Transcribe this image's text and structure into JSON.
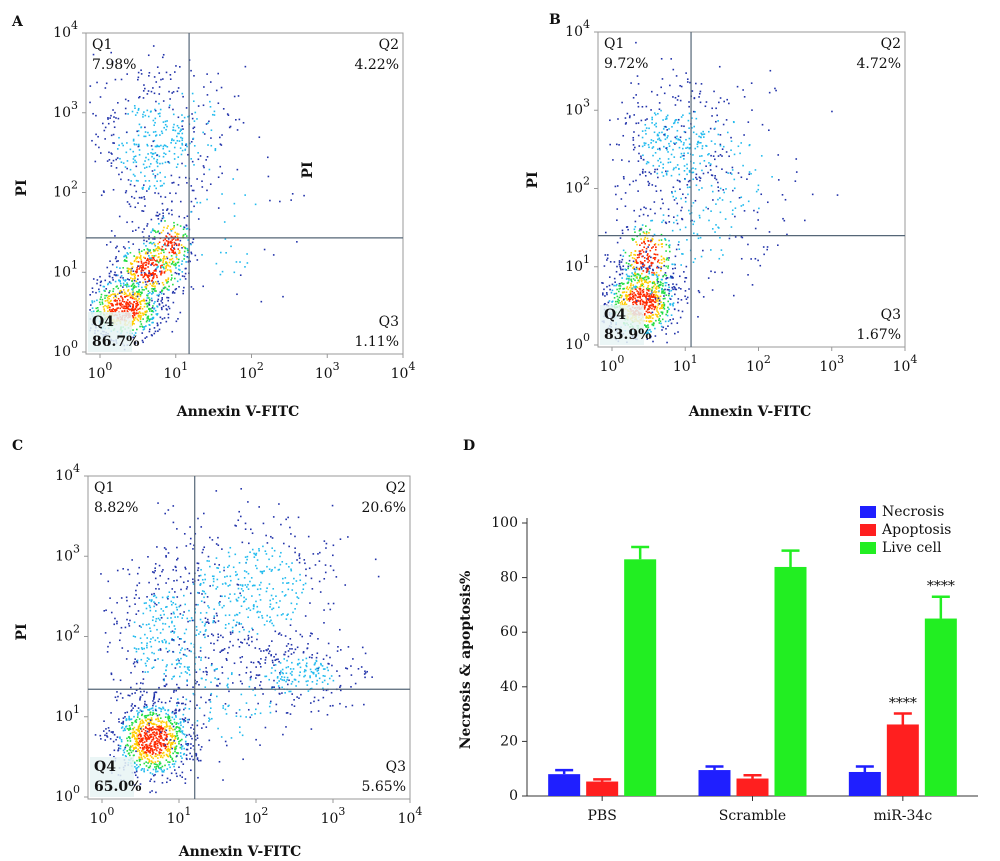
{
  "chart_data": [
    {
      "type": "flow",
      "panel": "A",
      "xlabel": "Annexin V-FITC",
      "ylabel": "PI",
      "annotation": "PI",
      "xscale": "log",
      "yscale": "log",
      "xlim": [
        1,
        10000
      ],
      "ylim": [
        1,
        10000
      ],
      "xticks": [
        {
          "value": 1,
          "label": "10",
          "sup": "0"
        },
        {
          "value": 10,
          "label": "10",
          "sup": "1"
        },
        {
          "value": 100,
          "label": "10",
          "sup": "2"
        },
        {
          "value": 1000,
          "label": "10",
          "sup": "3"
        },
        {
          "value": 10000,
          "label": "10",
          "sup": "4"
        }
      ],
      "yticks": [
        {
          "value": 1,
          "label": "10",
          "sup": "0"
        },
        {
          "value": 10,
          "label": "10",
          "sup": "1"
        },
        {
          "value": 100,
          "label": "10",
          "sup": "2"
        },
        {
          "value": 1000,
          "label": "10",
          "sup": "3"
        },
        {
          "value": 10000,
          "label": "10",
          "sup": "4"
        }
      ],
      "gate": {
        "x": 15,
        "y": 27
      },
      "quadrants": [
        "Q1",
        "Q2",
        "Q3",
        "Q4"
      ],
      "values": [
        7.98,
        4.22,
        1.11,
        86.7
      ],
      "value_labels": [
        "7.98%",
        "4.22%",
        "1.11%",
        "86.7%"
      ]
    },
    {
      "type": "flow",
      "panel": "B",
      "xlabel": "Annexin V-FITC",
      "ylabel": "PI",
      "xscale": "log",
      "yscale": "log",
      "xlim": [
        1,
        10000
      ],
      "ylim": [
        1,
        10000
      ],
      "xticks": [
        {
          "value": 1,
          "label": "10",
          "sup": "0"
        },
        {
          "value": 10,
          "label": "10",
          "sup": "1"
        },
        {
          "value": 100,
          "label": "10",
          "sup": "2"
        },
        {
          "value": 1000,
          "label": "10",
          "sup": "3"
        },
        {
          "value": 10000,
          "label": "10",
          "sup": "4"
        }
      ],
      "yticks": [
        {
          "value": 1,
          "label": "10",
          "sup": "0"
        },
        {
          "value": 10,
          "label": "10",
          "sup": "1"
        },
        {
          "value": 100,
          "label": "10",
          "sup": "2"
        },
        {
          "value": 1000,
          "label": "10",
          "sup": "3"
        },
        {
          "value": 10000,
          "label": "10",
          "sup": "4"
        }
      ],
      "gate": {
        "x": 12,
        "y": 25
      },
      "quadrants": [
        "Q1",
        "Q2",
        "Q3",
        "Q4"
      ],
      "values": [
        9.72,
        4.72,
        1.67,
        83.9
      ],
      "value_labels": [
        "9.72%",
        "4.72%",
        "1.67%",
        "83.9%"
      ]
    },
    {
      "type": "flow",
      "panel": "C",
      "xlabel": "Annexin V-FITC",
      "ylabel": "PI",
      "xscale": "log",
      "yscale": "log",
      "xlim": [
        1,
        10000
      ],
      "ylim": [
        1,
        10000
      ],
      "xticks": [
        {
          "value": 1,
          "label": "10",
          "sup": "0"
        },
        {
          "value": 10,
          "label": "10",
          "sup": "1"
        },
        {
          "value": 100,
          "label": "10",
          "sup": "2"
        },
        {
          "value": 1000,
          "label": "10",
          "sup": "3"
        },
        {
          "value": 10000,
          "label": "10",
          "sup": "4"
        }
      ],
      "yticks": [
        {
          "value": 1,
          "label": "10",
          "sup": "0"
        },
        {
          "value": 10,
          "label": "10",
          "sup": "1"
        },
        {
          "value": 100,
          "label": "10",
          "sup": "2"
        },
        {
          "value": 1000,
          "label": "10",
          "sup": "3"
        },
        {
          "value": 10000,
          "label": "10",
          "sup": "4"
        }
      ],
      "gate": {
        "x": 16,
        "y": 22
      },
      "quadrants": [
        "Q1",
        "Q2",
        "Q3",
        "Q4"
      ],
      "values": [
        8.82,
        20.6,
        5.65,
        65.0
      ],
      "value_labels": [
        "8.82%",
        "20.6%",
        "5.65%",
        "65.0%"
      ]
    },
    {
      "type": "bar",
      "panel": "D",
      "ylabel": "Necrosis & apoptosis%",
      "categories": [
        "PBS",
        "Scramble",
        "miR-34c"
      ],
      "series": [
        {
          "name": "Necrosis",
          "color": "#1f1fff",
          "values": [
            8,
            9.5,
            8.8
          ],
          "errors": [
            1.5,
            1.3,
            2
          ]
        },
        {
          "name": "Apoptosis",
          "color": "#ff1f1f",
          "values": [
            5.3,
            6.4,
            26.2
          ],
          "errors": [
            0.8,
            1.2,
            4
          ]
        },
        {
          "name": "Live cell",
          "color": "#22ee22",
          "values": [
            86.7,
            83.9,
            65
          ],
          "errors": [
            4.5,
            6,
            8
          ]
        }
      ],
      "annotations": [
        {
          "text": "****",
          "series": 1,
          "category": 2
        },
        {
          "text": "****",
          "series": 2,
          "category": 2
        }
      ],
      "ylim": [
        0,
        100
      ],
      "yticks": [
        0,
        20,
        40,
        60,
        80,
        100
      ],
      "legend": "top-right"
    }
  ]
}
